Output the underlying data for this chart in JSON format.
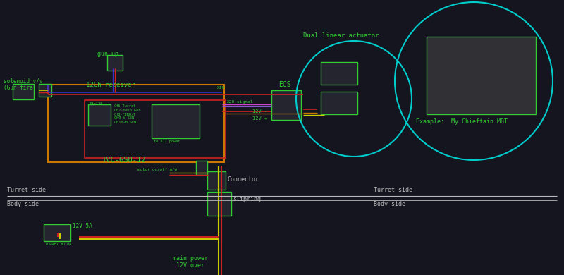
{
  "bg_color": "#151520",
  "green": "#33cc33",
  "cyan": "#00cccc",
  "white": "#bbbbbb",
  "red": "#cc2222",
  "yellow": "#cccc00",
  "blue": "#3333cc",
  "magenta": "#cc44cc",
  "orange": "#cc7700",
  "dark_red": "#882222",
  "labels": {
    "solenoid": "solenoid v/v\n(Gun fire)",
    "gun_up": "gun up",
    "receiver": "12Ch receiver",
    "ecs": "ECS",
    "tvc": "TVC-GSU-12",
    "dual_linear": "Dual linear actuator",
    "example": "Example:  My Chieftain MBT",
    "connector": "Connector",
    "slipring": "slipring",
    "turret_side_l": "Turret side",
    "body_side_l": "Body side",
    "turret_side_r": "Turret side",
    "body_side_r": "Body side",
    "main_power": "main power\n12V over",
    "x19": "X19",
    "x20_signal": "X20-signal",
    "x17_power": "to X17 power",
    "fbr125": "FBr125",
    "ch_info": "CH6-Turret\nCH7-Main Gun\nCH8-FIRU/T\nCH9-V SEN\nCH10-H SEN",
    "12v_minus": "12V -",
    "12v_plus": "12V +",
    "motor_onoff": "motor on/off a/w",
    "12v_5a": "12V 5A",
    "turret_motor": "TURRET MOTOR"
  }
}
